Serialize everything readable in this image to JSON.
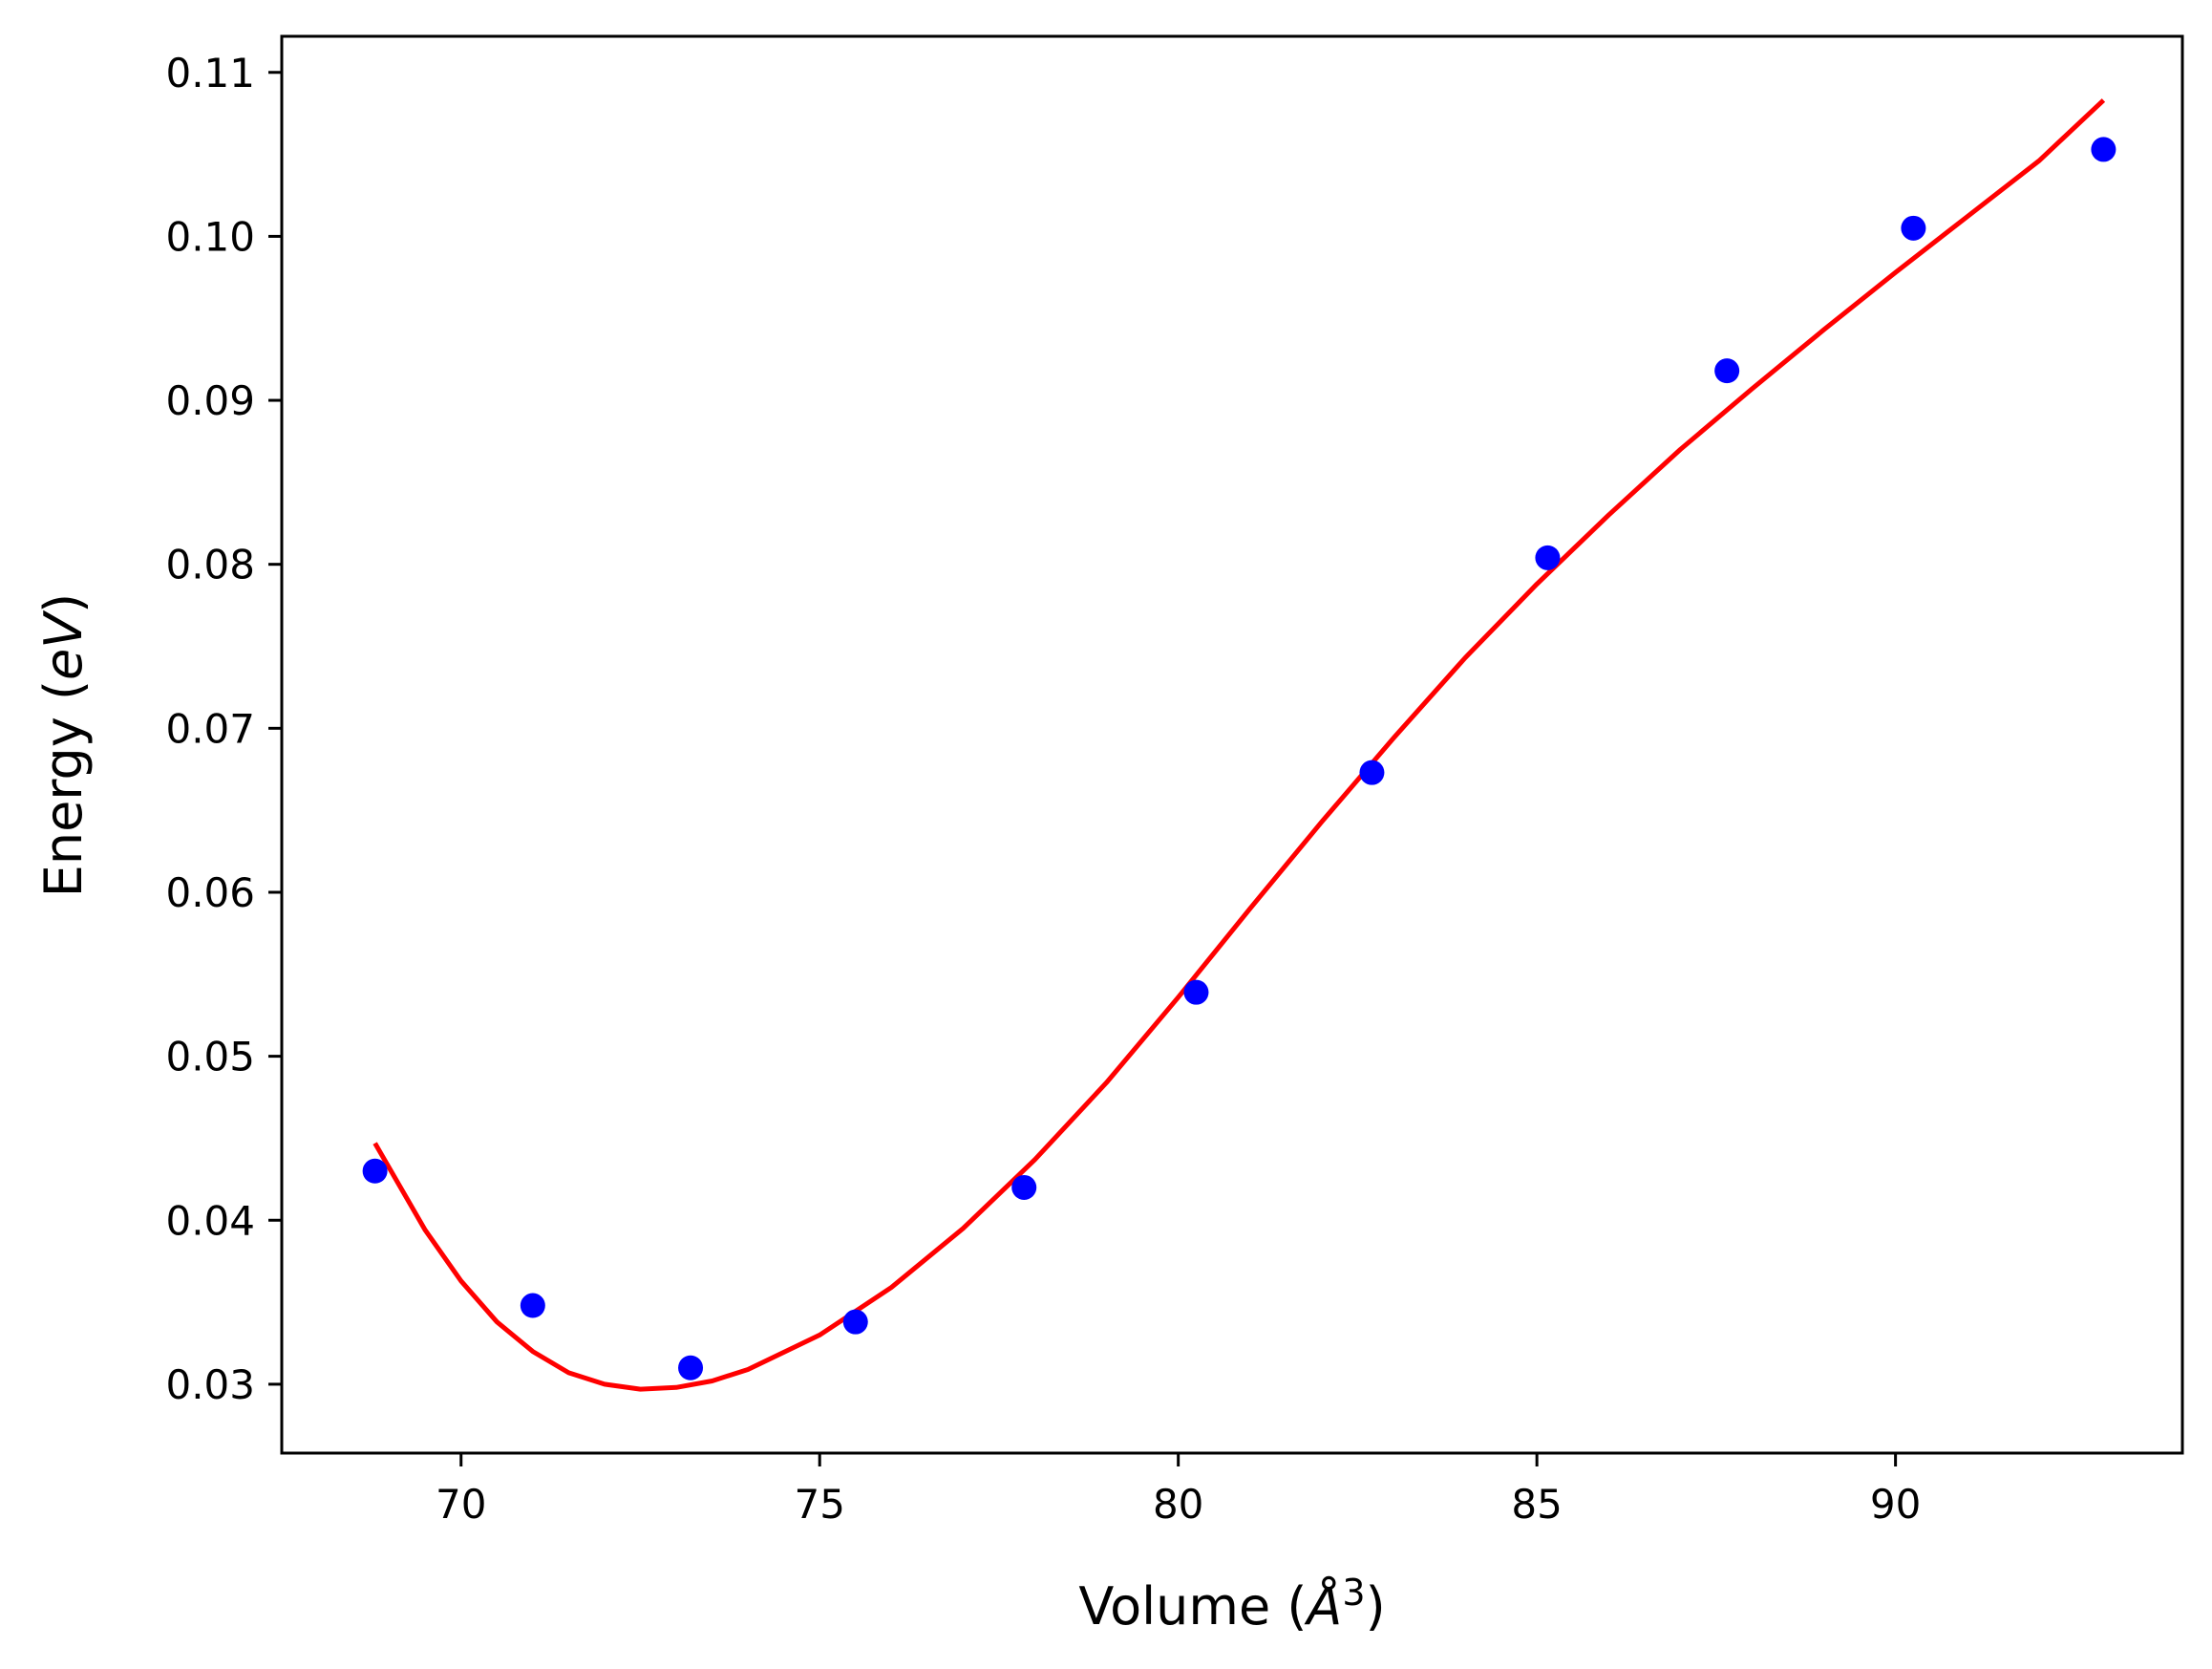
{
  "chart_data": {
    "type": "scatter",
    "xlabel": {
      "prefix": "Volume (",
      "symbol": "Å",
      "exponent": "3",
      "suffix": ")"
    },
    "ylabel": {
      "prefix": "Energy (",
      "symbol": "eV",
      "suffix": ")"
    },
    "xlim": [
      67.5,
      94.0
    ],
    "ylim": [
      0.0258,
      0.1122
    ],
    "xticks": [
      {
        "value": 70,
        "label": "70"
      },
      {
        "value": 75,
        "label": "75"
      },
      {
        "value": 80,
        "label": "80"
      },
      {
        "value": 85,
        "label": "85"
      },
      {
        "value": 90,
        "label": "90"
      }
    ],
    "yticks": [
      {
        "value": 0.03,
        "label": "0.03"
      },
      {
        "value": 0.04,
        "label": "0.04"
      },
      {
        "value": 0.05,
        "label": "0.05"
      },
      {
        "value": 0.06,
        "label": "0.06"
      },
      {
        "value": 0.07,
        "label": "0.07"
      },
      {
        "value": 0.08,
        "label": "0.08"
      },
      {
        "value": 0.09,
        "label": "0.09"
      },
      {
        "value": 0.1,
        "label": "0.10"
      },
      {
        "value": 0.11,
        "label": "0.11"
      }
    ],
    "grid": false,
    "series": [
      {
        "type": "scatter",
        "color": "#0000ff",
        "points": [
          {
            "x": 68.8,
            "y": 0.043
          },
          {
            "x": 71.0,
            "y": 0.0348
          },
          {
            "x": 73.2,
            "y": 0.031
          },
          {
            "x": 75.5,
            "y": 0.0338
          },
          {
            "x": 77.85,
            "y": 0.042
          },
          {
            "x": 80.25,
            "y": 0.0539
          },
          {
            "x": 82.7,
            "y": 0.0673
          },
          {
            "x": 85.15,
            "y": 0.0804
          },
          {
            "x": 87.65,
            "y": 0.0918
          },
          {
            "x": 90.25,
            "y": 0.1005
          },
          {
            "x": 92.9,
            "y": 0.1053
          }
        ]
      },
      {
        "type": "line",
        "color": "#ff0000",
        "points": [
          {
            "x": 68.8,
            "y": 0.0447
          },
          {
            "x": 69.5,
            "y": 0.0394
          },
          {
            "x": 70.0,
            "y": 0.0363
          },
          {
            "x": 70.5,
            "y": 0.0338
          },
          {
            "x": 71.0,
            "y": 0.032
          },
          {
            "x": 71.5,
            "y": 0.0307
          },
          {
            "x": 72.0,
            "y": 0.03
          },
          {
            "x": 72.5,
            "y": 0.0297
          },
          {
            "x": 73.0,
            "y": 0.0298
          },
          {
            "x": 73.5,
            "y": 0.0302
          },
          {
            "x": 74.0,
            "y": 0.0309
          },
          {
            "x": 75.0,
            "y": 0.033
          },
          {
            "x": 76.0,
            "y": 0.0359
          },
          {
            "x": 77.0,
            "y": 0.0395
          },
          {
            "x": 78.0,
            "y": 0.0437
          },
          {
            "x": 79.0,
            "y": 0.0484
          },
          {
            "x": 80.0,
            "y": 0.0536
          },
          {
            "x": 81.0,
            "y": 0.059
          },
          {
            "x": 82.0,
            "y": 0.0643
          },
          {
            "x": 83.0,
            "y": 0.0694
          },
          {
            "x": 84.0,
            "y": 0.0743
          },
          {
            "x": 85.0,
            "y": 0.0788
          },
          {
            "x": 86.0,
            "y": 0.083
          },
          {
            "x": 87.0,
            "y": 0.087
          },
          {
            "x": 88.0,
            "y": 0.0907
          },
          {
            "x": 89.0,
            "y": 0.0943
          },
          {
            "x": 90.0,
            "y": 0.0978
          },
          {
            "x": 91.0,
            "y": 0.1012
          },
          {
            "x": 92.0,
            "y": 0.1046
          },
          {
            "x": 92.9,
            "y": 0.1083
          }
        ]
      }
    ]
  }
}
